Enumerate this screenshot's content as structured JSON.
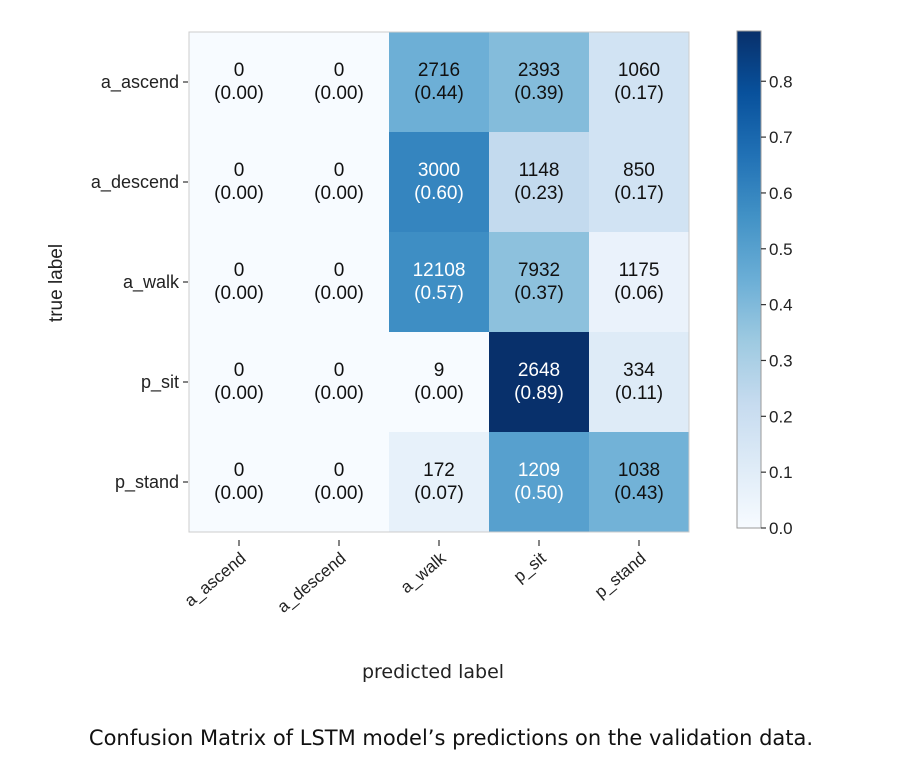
{
  "chart_data": {
    "type": "heatmap",
    "xlabel": "predicted label",
    "ylabel": "true label",
    "x_categories": [
      "a_ascend",
      "a_descend",
      "a_walk",
      "p_sit",
      "p_stand"
    ],
    "y_categories": [
      "a_ascend",
      "a_descend",
      "a_walk",
      "p_sit",
      "p_stand"
    ],
    "counts": [
      [
        0,
        0,
        2716,
        2393,
        1060
      ],
      [
        0,
        0,
        3000,
        1148,
        850
      ],
      [
        0,
        0,
        12108,
        7932,
        1175
      ],
      [
        0,
        0,
        9,
        2648,
        334
      ],
      [
        0,
        0,
        172,
        1209,
        1038
      ]
    ],
    "count_labels": [
      [
        "0",
        "0",
        "2716",
        "2393",
        "1060"
      ],
      [
        "0",
        "0",
        "3000",
        "1148",
        "850"
      ],
      [
        "0",
        "0",
        "12108",
        "7932",
        "1175"
      ],
      [
        "0",
        "0",
        "9",
        "2648",
        "334"
      ],
      [
        "0",
        "0",
        "172",
        "1209",
        "1038"
      ]
    ],
    "normalized": [
      [
        0.0,
        0.0,
        0.44,
        0.39,
        0.17
      ],
      [
        0.0,
        0.0,
        0.6,
        0.23,
        0.17
      ],
      [
        0.0,
        0.0,
        0.57,
        0.37,
        0.06
      ],
      [
        0.0,
        0.0,
        0.0,
        0.89,
        0.11
      ],
      [
        0.0,
        0.0,
        0.07,
        0.5,
        0.43
      ]
    ],
    "normalized_labels": [
      [
        "(0.00)",
        "(0.00)",
        "(0.44)",
        "(0.39)",
        "(0.17)"
      ],
      [
        "(0.00)",
        "(0.00)",
        "(0.60)",
        "(0.23)",
        "(0.17)"
      ],
      [
        "(0.00)",
        "(0.00)",
        "(0.57)",
        "(0.37)",
        "(0.06)"
      ],
      [
        "(0.00)",
        "(0.00)",
        "(0.00)",
        "(0.89)",
        "(0.11)"
      ],
      [
        "(0.00)",
        "(0.00)",
        "(0.07)",
        "(0.50)",
        "(0.43)"
      ]
    ],
    "colorbar": {
      "min": 0.0,
      "max": 0.89,
      "ticks": [
        0.0,
        0.1,
        0.2,
        0.3,
        0.4,
        0.5,
        0.6,
        0.7,
        0.8
      ],
      "tick_labels": [
        "0.0",
        "0.1",
        "0.2",
        "0.3",
        "0.4",
        "0.5",
        "0.6",
        "0.7",
        "0.8"
      ],
      "colormap": "Blues",
      "color_low": "#f7fbff",
      "color_high": "#08306b"
    },
    "grid": false
  },
  "caption": "Confusion Matrix of LSTM model’s predictions on the validation data."
}
